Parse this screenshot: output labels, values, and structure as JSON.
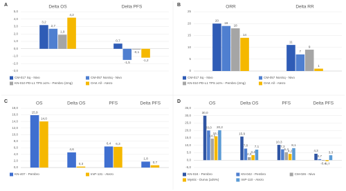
{
  "chart_data": [
    {
      "type": "bar",
      "panel_label": "A",
      "categories": [
        "Delta OS",
        "Delta PFS"
      ],
      "ylim": [
        -3,
        5
      ],
      "grid": true,
      "yticks": [
        {
          "value": -3,
          "label": "-3,0"
        },
        {
          "value": -2,
          "label": "-2,0"
        },
        {
          "value": -1,
          "label": "-1,0"
        },
        {
          "value": 0,
          "label": "0,0"
        },
        {
          "value": 1,
          "label": "1,0"
        },
        {
          "value": 2,
          "label": "2,0"
        },
        {
          "value": 3,
          "label": "3,0"
        },
        {
          "value": 4,
          "label": "4,0"
        },
        {
          "value": 5,
          "label": "5,0"
        }
      ],
      "series": [
        {
          "name": "CM-017 Sq - Nivo",
          "color": "#2f5cb6",
          "values": [
            3.2,
            0.7
          ],
          "value_labels": [
            "3,2",
            "0,7"
          ]
        },
        {
          "name": "CM-057 NonSq - Nivo",
          "color": "#4f7fd0",
          "values": [
            2.7,
            -1.5
          ],
          "value_labels": [
            "2,7",
            "-1,5"
          ]
        },
        {
          "name": "KN-010 PD-L1 TPS ≥1% - Pembro (2mg)",
          "color": "#a5a5a5",
          "values": [
            1.9,
            -0.1
          ],
          "value_labels": [
            "1,9",
            "-0,1"
          ]
        },
        {
          "name": "OAK All - Atezo",
          "color": "#f5b800",
          "values": [
            4.2,
            -1.2
          ],
          "value_labels": [
            "4,2",
            "-1,2"
          ]
        }
      ]
    },
    {
      "type": "bar",
      "panel_label": "B",
      "categories": [
        "ORR",
        "Delta RR"
      ],
      "ylim": [
        0,
        25
      ],
      "grid": true,
      "yticks": [
        0,
        5,
        10,
        15,
        20,
        25
      ],
      "series": [
        {
          "name": "CM-017 Sq - Nivo",
          "color": "#2f5cb6",
          "values": [
            20,
            11
          ]
        },
        {
          "name": "CM-057 NonSq - Nivo",
          "color": "#4f7fd0",
          "values": [
            19,
            7
          ]
        },
        {
          "name": "KN-010 PD-L1 TPS ≥1% - Pembro (2mg)",
          "color": "#a5a5a5",
          "values": [
            18,
            9
          ]
        },
        {
          "name": "OAK All - Atezo",
          "color": "#f5b800",
          "values": [
            14,
            1
          ]
        }
      ]
    },
    {
      "type": "bar",
      "panel_label": "C",
      "categories": [
        "OS",
        "Delta OS",
        "PFS",
        "Delta PFS"
      ],
      "ylim": [
        0,
        18
      ],
      "grid": true,
      "yticks": [
        {
          "value": 0,
          "label": "0,0"
        },
        {
          "value": 2,
          "label": "2,0"
        },
        {
          "value": 4,
          "label": "4,0"
        },
        {
          "value": 6,
          "label": "6,0"
        },
        {
          "value": 8,
          "label": "8,0"
        },
        {
          "value": 10,
          "label": "10,0"
        },
        {
          "value": 12,
          "label": "12,0"
        },
        {
          "value": 14,
          "label": "14,0"
        },
        {
          "value": 16,
          "label": "16,0"
        },
        {
          "value": 18,
          "label": "18,0"
        }
      ],
      "series": [
        {
          "name": "KN-407 - Pembro",
          "color": "#3f6fd0",
          "values": [
            15.9,
            4.6,
            6.4,
            1.8
          ],
          "value_labels": [
            "15,9",
            "4,6",
            "6,4",
            "1,8"
          ]
        },
        {
          "name": "ImP-131 - Atezo",
          "color": "#f5b800",
          "values": [
            14.0,
            0.3,
            6.3,
            0.7
          ],
          "value_labels": [
            "14,0",
            "0,3",
            "6,3",
            "0,7"
          ]
        }
      ]
    },
    {
      "type": "bar",
      "panel_label": "D",
      "categories": [
        "OS",
        "Delta OS",
        "PFS",
        "Delta PFS"
      ],
      "ylim": [
        -5,
        35
      ],
      "grid": true,
      "yticks": [
        {
          "value": -5,
          "label": "-5,0"
        },
        {
          "value": 0,
          "label": "0,0"
        },
        {
          "value": 5,
          "label": "5,0"
        },
        {
          "value": 10,
          "label": "10,0"
        },
        {
          "value": 15,
          "label": "15,0"
        },
        {
          "value": 20,
          "label": "20,0"
        },
        {
          "value": 25,
          "label": "25,0"
        },
        {
          "value": 30,
          "label": "30,0"
        },
        {
          "value": 35,
          "label": "35,0"
        }
      ],
      "series": [
        {
          "name": "KN-024 - Pembro",
          "color": "#2f55a4",
          "values": [
            30.0,
            15.9,
            10.3,
            4.3
          ],
          "value_labels": [
            "30,0",
            "15,9",
            "10,3",
            "4,3"
          ]
        },
        {
          "name": "KN-042 - Pembro",
          "color": "#4f7fd0",
          "values": [
            20.0,
            7.8,
            7.3,
            0.7
          ],
          "value_labels": [
            "20,0",
            "7,8",
            "7,3",
            "0,7"
          ]
        },
        {
          "name": "CM-026 - Nivo",
          "color": "#a5a5a5",
          "values": [
            14.5,
            2.0,
            5.4,
            -0.4
          ],
          "value_labels": [
            "14,5",
            "2,0",
            "5,4",
            "-0,4"
          ]
        },
        {
          "name": "Mystic - Durva (≥25%)",
          "color": "#f5b800",
          "values": [
            16.1,
            3.4,
            4.2,
            -0.7
          ],
          "value_labels": [
            "16,1",
            "3,4",
            "4,2",
            "-0,7"
          ]
        },
        {
          "name": "ImP-110 - Atezo",
          "color": "#5b9bd5",
          "values": [
            20.2,
            7.1,
            8.1,
            3.3
          ],
          "value_labels": [
            "20,2",
            "7,1",
            "8,1",
            "3,3"
          ]
        }
      ]
    }
  ]
}
